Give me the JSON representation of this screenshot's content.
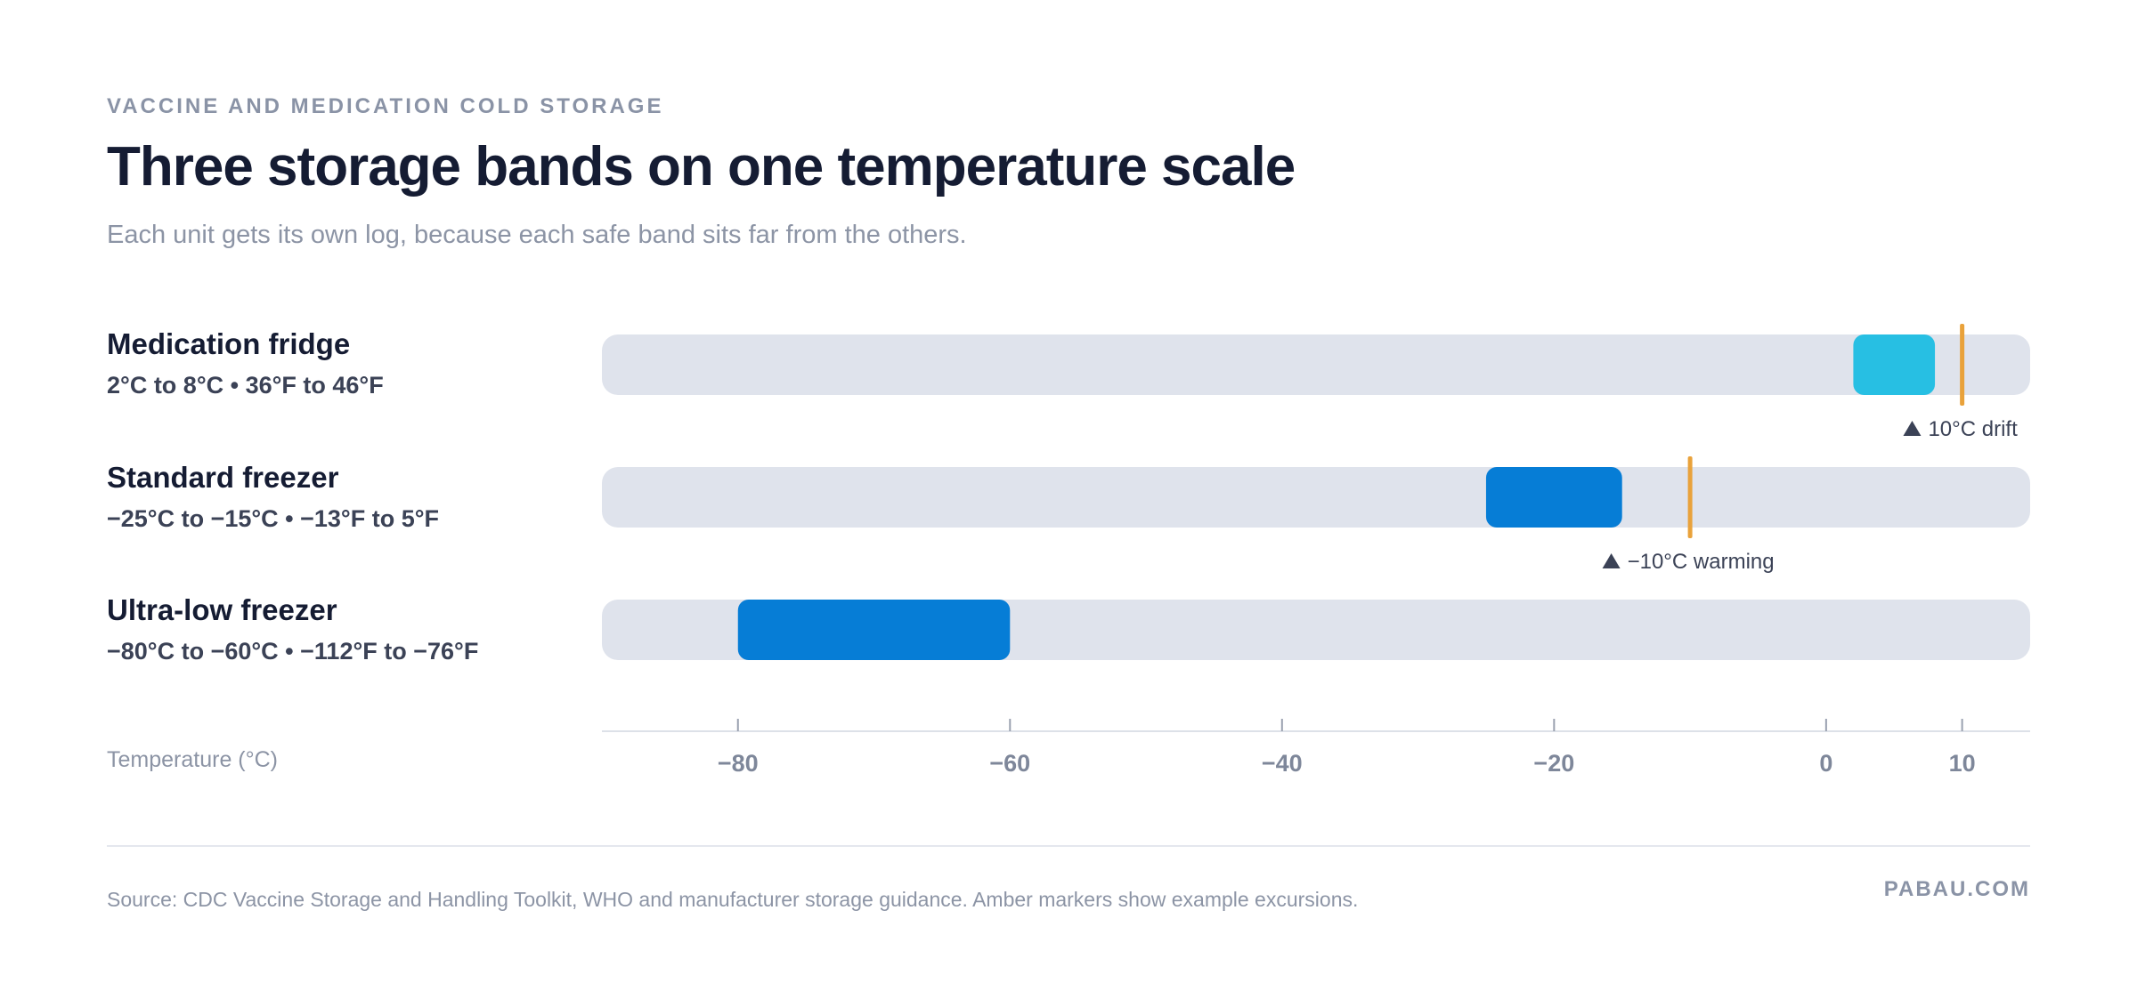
{
  "eyebrow": "VACCINE AND MEDICATION COLD STORAGE",
  "title": "Three storage bands on one temperature scale",
  "subtitle": "Each unit gets its own log, because each safe band sits far from the others.",
  "axis_title": "Temperature (°C)",
  "source": "Source: CDC Vaccine Storage and Handling Toolkit, WHO and manufacturer storage guidance. Amber markers show example excursions.",
  "brand": "PABAU.COM",
  "colors": {
    "track": "#dfe3ec",
    "fridge_band": "#27bfe3",
    "freezer_band": "#067dd6",
    "marker": "#e9a23b"
  },
  "chart_data": {
    "type": "range-bar",
    "xlabel": "Temperature (°C)",
    "xlim": [
      -90,
      15
    ],
    "ticks": [
      -80,
      -60,
      -40,
      -20,
      0,
      10
    ],
    "tick_labels": [
      "−80",
      "−60",
      "−40",
      "−20",
      "0",
      "10"
    ],
    "rows": [
      {
        "name": "Medication fridge",
        "range_label": "2°C to 8°C • 36°F to 46°F",
        "min": 2,
        "max": 8,
        "color": "#27bfe3",
        "marker": {
          "value": 10,
          "label": "10°C drift"
        }
      },
      {
        "name": "Standard freezer",
        "range_label": "−25°C to −15°C • −13°F to 5°F",
        "min": -25,
        "max": -15,
        "color": "#067dd6",
        "marker": {
          "value": -10,
          "label": "−10°C warming"
        }
      },
      {
        "name": "Ultra-low freezer",
        "range_label": "−80°C to −60°C • −112°F to −76°F",
        "min": -80,
        "max": -60,
        "color": "#067dd6",
        "marker": null
      }
    ]
  }
}
